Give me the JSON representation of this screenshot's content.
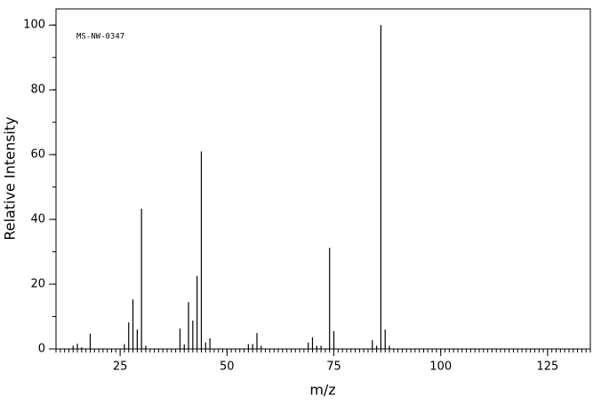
{
  "chart_data": {
    "type": "stem",
    "annotation": "MS-NW-0347",
    "xlabel": "m/z",
    "ylabel": "Relative Intensity",
    "x": [
      14,
      15,
      16,
      18,
      26,
      27,
      28,
      29,
      30,
      31,
      39,
      40,
      41,
      42,
      43,
      44,
      45,
      46,
      55,
      56,
      57,
      58,
      69,
      70,
      71,
      72,
      74,
      75,
      84,
      85,
      86,
      87,
      88
    ],
    "values": [
      1,
      1.6,
      0.5,
      4.7,
      1.5,
      8.2,
      15.3,
      6,
      43.3,
      1,
      6.3,
      1.4,
      14.5,
      8.8,
      22.5,
      61,
      2,
      3.3,
      1.5,
      1.5,
      4.9,
      1,
      2,
      3.6,
      1,
      1,
      31.2,
      5.5,
      2.7,
      1,
      100,
      6,
      1
    ],
    "color": "#000000",
    "xlim": [
      10,
      135
    ],
    "ylim": [
      0,
      105
    ],
    "xticks": [
      25,
      50,
      75,
      100,
      125
    ],
    "yticks": [
      0,
      20,
      40,
      60,
      80,
      100
    ],
    "x_minor_tick_interval": 1,
    "y_minor_tick_interval": 10
  }
}
